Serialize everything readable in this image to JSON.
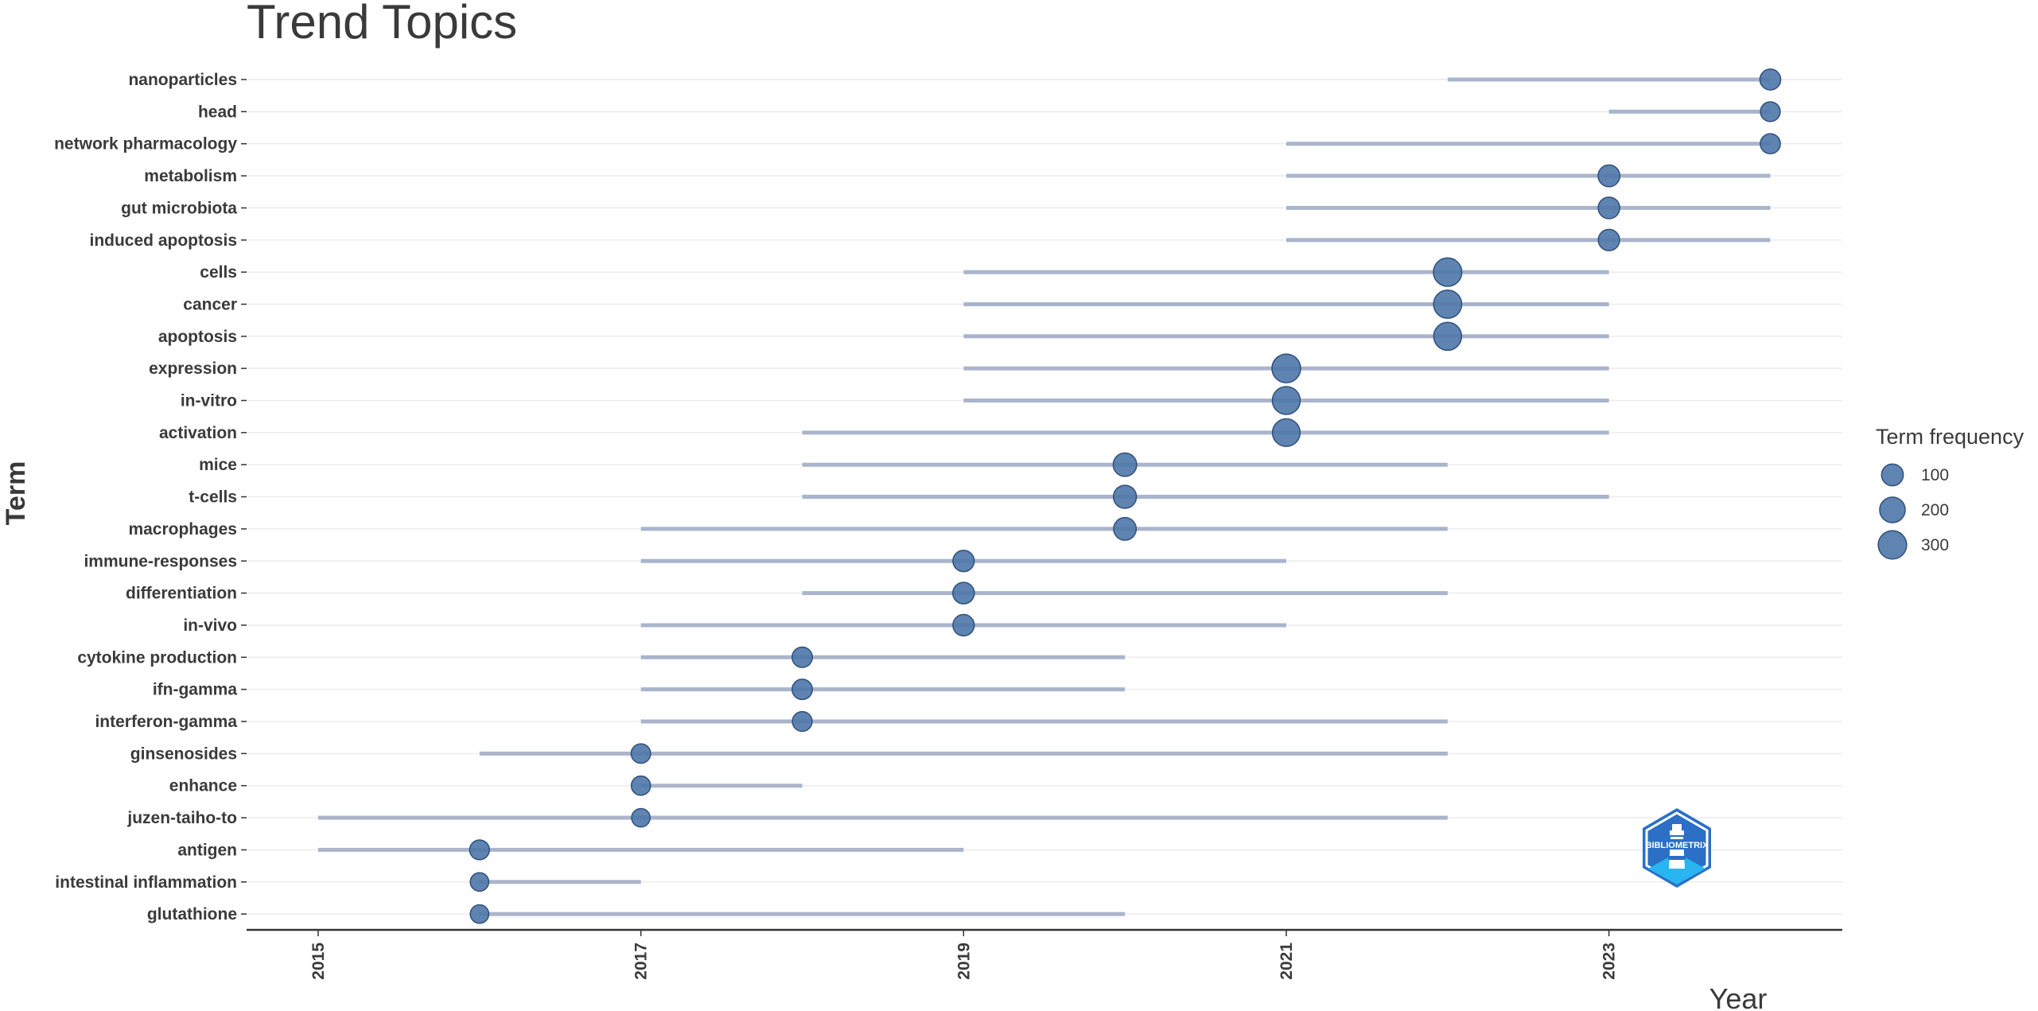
{
  "chart_data": {
    "type": "scatter",
    "title": "Trend Topics",
    "xlabel": "Year",
    "ylabel": "Term",
    "x_ticks": [
      "2015",
      "2017",
      "2019",
      "2021",
      "2023"
    ],
    "xlim": [
      2014.55,
      2024.45
    ],
    "grid": "horizontal",
    "legend": {
      "title": "Term frequency",
      "placement": "right",
      "entries": [
        {
          "label": "100",
          "value": 100
        },
        {
          "label": "200",
          "value": 200
        },
        {
          "label": "300",
          "value": 300
        }
      ]
    },
    "point_color": "#4e77aa",
    "range_color": "#aab4cc",
    "terms": [
      {
        "term": "nanoparticles",
        "start": 2022,
        "median": 2024,
        "end": 2024,
        "freq": 80
      },
      {
        "term": "head",
        "start": 2023,
        "median": 2024,
        "end": 2024,
        "freq": 60
      },
      {
        "term": "network pharmacology",
        "start": 2021,
        "median": 2024,
        "end": 2024,
        "freq": 65
      },
      {
        "term": "metabolism",
        "start": 2021,
        "median": 2023,
        "end": 2024,
        "freq": 100
      },
      {
        "term": "gut microbiota",
        "start": 2021,
        "median": 2023,
        "end": 2024,
        "freq": 95
      },
      {
        "term": "induced apoptosis",
        "start": 2021,
        "median": 2023,
        "end": 2024,
        "freq": 90
      },
      {
        "term": "cells",
        "start": 2019,
        "median": 2022,
        "end": 2023,
        "freq": 300
      },
      {
        "term": "cancer",
        "start": 2019,
        "median": 2022,
        "end": 2023,
        "freq": 290
      },
      {
        "term": "apoptosis",
        "start": 2019,
        "median": 2022,
        "end": 2023,
        "freq": 280
      },
      {
        "term": "expression",
        "start": 2019,
        "median": 2021,
        "end": 2023,
        "freq": 310
      },
      {
        "term": "in-vitro",
        "start": 2019,
        "median": 2021,
        "end": 2023,
        "freq": 280
      },
      {
        "term": "activation",
        "start": 2018,
        "median": 2021,
        "end": 2023,
        "freq": 270
      },
      {
        "term": "mice",
        "start": 2018,
        "median": 2020,
        "end": 2022,
        "freq": 140
      },
      {
        "term": "t-cells",
        "start": 2018,
        "median": 2020,
        "end": 2023,
        "freq": 130
      },
      {
        "term": "macrophages",
        "start": 2017,
        "median": 2020,
        "end": 2022,
        "freq": 120
      },
      {
        "term": "immune-responses",
        "start": 2017,
        "median": 2019,
        "end": 2021,
        "freq": 90
      },
      {
        "term": "differentiation",
        "start": 2018,
        "median": 2019,
        "end": 2022,
        "freq": 95
      },
      {
        "term": "in-vivo",
        "start": 2017,
        "median": 2019,
        "end": 2021,
        "freq": 90
      },
      {
        "term": "cytokine production",
        "start": 2017,
        "median": 2018,
        "end": 2020,
        "freq": 70
      },
      {
        "term": "ifn-gamma",
        "start": 2017,
        "median": 2018,
        "end": 2020,
        "freq": 70
      },
      {
        "term": "interferon-gamma",
        "start": 2017,
        "median": 2018,
        "end": 2022,
        "freq": 60
      },
      {
        "term": "ginsenosides",
        "start": 2016,
        "median": 2017,
        "end": 2022,
        "freq": 55
      },
      {
        "term": "enhance",
        "start": 2017,
        "median": 2017,
        "end": 2018,
        "freq": 50
      },
      {
        "term": "juzen-taiho-to",
        "start": 2015,
        "median": 2017,
        "end": 2022,
        "freq": 40
      },
      {
        "term": "antigen",
        "start": 2015,
        "median": 2016,
        "end": 2019,
        "freq": 60
      },
      {
        "term": "intestinal inflammation",
        "start": 2016,
        "median": 2016,
        "end": 2017,
        "freq": 40
      },
      {
        "term": "glutathione",
        "start": 2016,
        "median": 2016,
        "end": 2020,
        "freq": 40
      }
    ]
  },
  "logo": {
    "text": "BIBLIOMETRIX",
    "icon": "bibliometrix-lighthouse-logo"
  }
}
